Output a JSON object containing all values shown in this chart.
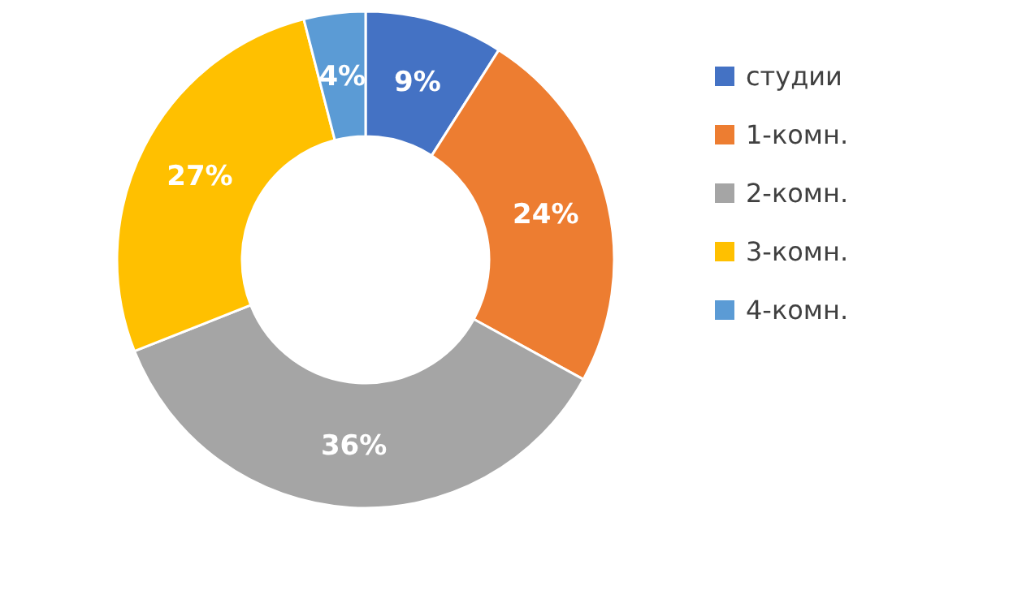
{
  "chart_data": {
    "type": "donut",
    "categories": [
      "студии",
      "1-комн.",
      "2-комн.",
      "3-комн.",
      "4-комн."
    ],
    "values": [
      9,
      24,
      36,
      27,
      4
    ],
    "colors": [
      "#4472c4",
      "#ed7d31",
      "#a5a5a5",
      "#ffc000",
      "#5b9bd5"
    ],
    "value_labels": [
      "9%",
      "24%",
      "36%",
      "27%",
      "4%"
    ],
    "legend": "right"
  }
}
